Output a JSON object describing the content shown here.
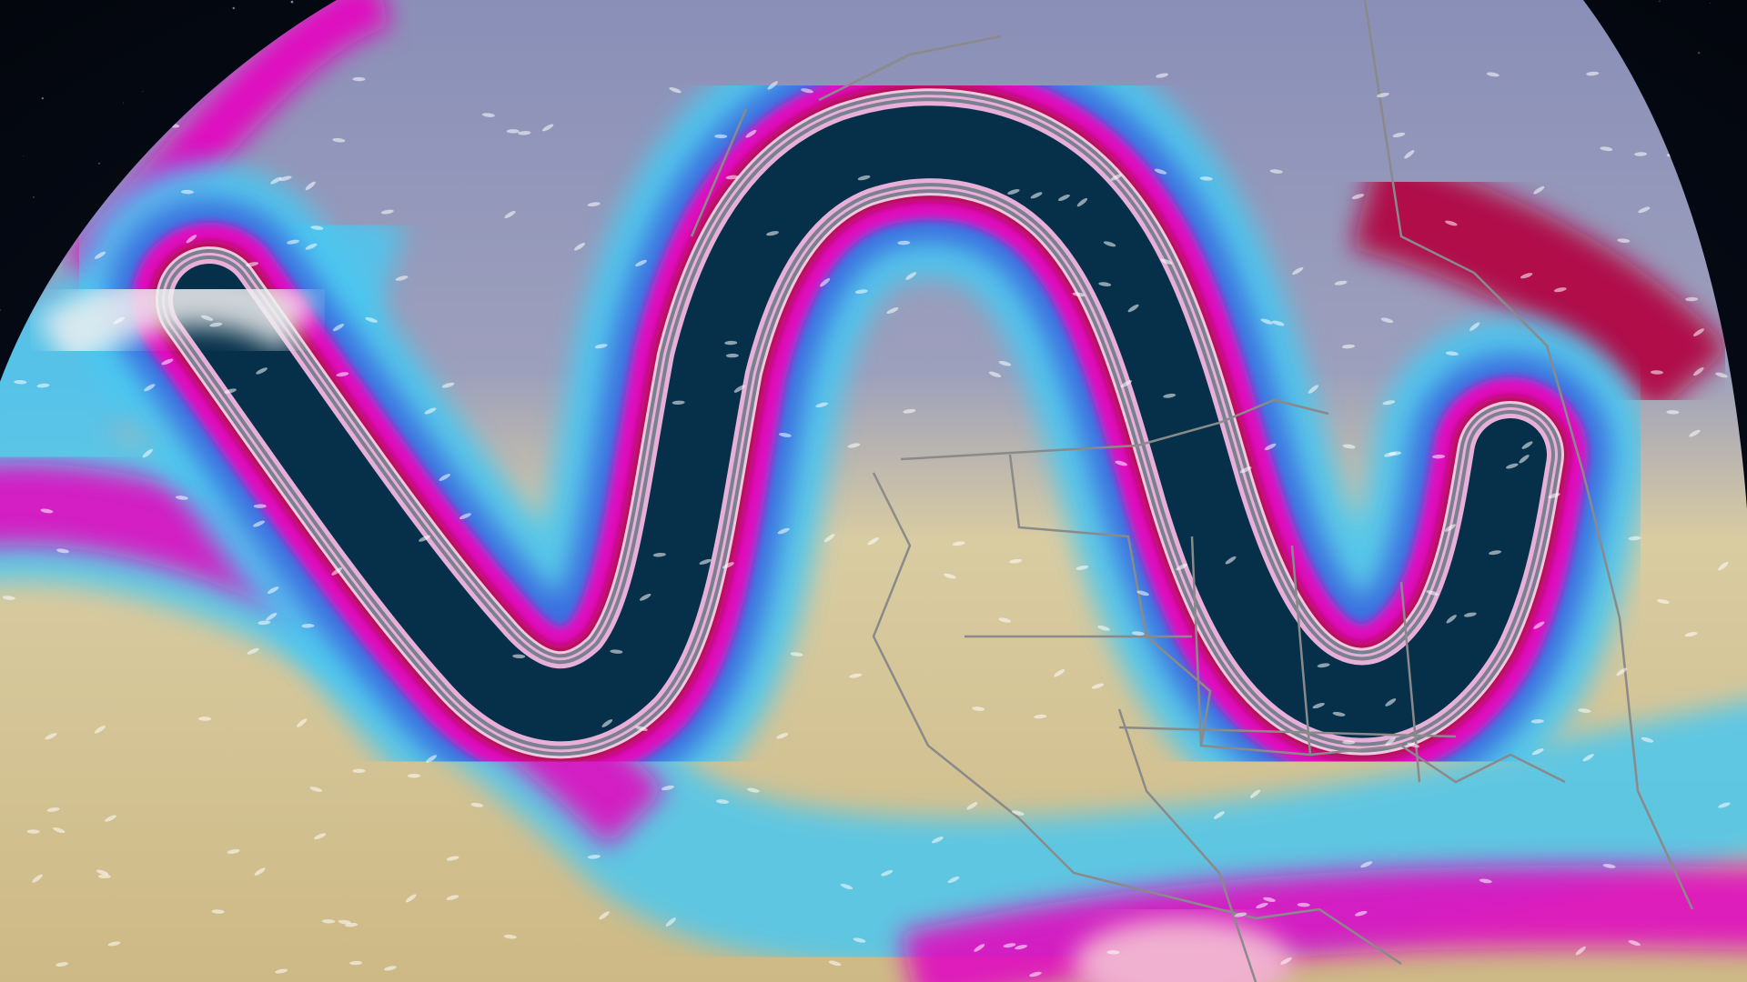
{
  "scene": {
    "kind": "globe-jet-stream-visualization",
    "colors": {
      "space": "#050a14",
      "land_low_wind": "#d8c89a",
      "high_latitude": "#8a8fb8",
      "cyan": "#4cc8f0",
      "blue": "#3a6ee0",
      "magenta": "#e010c0",
      "crimson": "#b0104a",
      "jet_core": "#06304a",
      "borders": "#8a8a8a"
    },
    "icons": [
      "wind-streak-icon"
    ]
  }
}
